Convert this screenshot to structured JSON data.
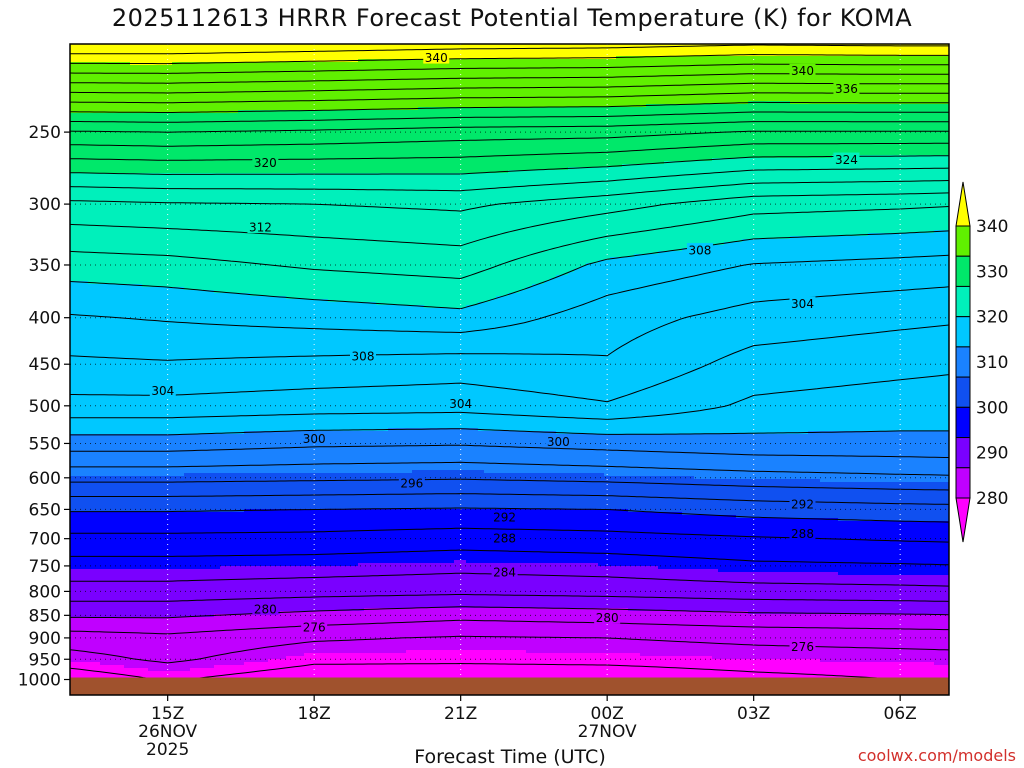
{
  "chart_data": {
    "type": "heatmap",
    "title": "2025112613 HRRR Forecast Potential Temperature (K) for KOMA",
    "xlabel": "Forecast Time (UTC)",
    "x_ticks": [
      {
        "hour": 15,
        "lines": [
          "15Z",
          "26NOV",
          "2025"
        ]
      },
      {
        "hour": 18,
        "lines": [
          "18Z"
        ]
      },
      {
        "hour": 21,
        "lines": [
          "21Z"
        ]
      },
      {
        "hour": 24,
        "lines": [
          "00Z",
          "27NOV"
        ]
      },
      {
        "hour": 27,
        "lines": [
          "03Z"
        ]
      },
      {
        "hour": 30,
        "lines": [
          "06Z"
        ]
      }
    ],
    "xlim": [
      13,
      31
    ],
    "y_scale": "log",
    "ylim": [
      200,
      1040
    ],
    "y_ticks": [
      250,
      300,
      350,
      400,
      450,
      500,
      550,
      600,
      650,
      700,
      750,
      800,
      850,
      900,
      950,
      1000
    ],
    "grid": true,
    "surface_pressure": 1000,
    "colorbar": {
      "ticks": [
        280,
        290,
        300,
        310,
        320,
        330,
        340
      ],
      "colors": [
        "#ff00ff",
        "#c000ff",
        "#7a00ff",
        "#0000ff",
        "#1050f0",
        "#1a82ff",
        "#00c8ff",
        "#00f0bb",
        "#00e86a",
        "#60f000",
        "#ffff00"
      ],
      "bounds": [
        270,
        275,
        280,
        285,
        290,
        295,
        300,
        310,
        320,
        330,
        340,
        350
      ]
    },
    "profile_hours": [
      13,
      15,
      18,
      21,
      24,
      27,
      30,
      31
    ],
    "profiles": [
      {
        "p": [
          1000,
          950,
          900,
          850,
          800,
          750,
          700,
          650,
          600,
          550,
          500,
          450,
          400,
          350,
          300,
          250,
          200
        ],
        "theta": [
          272.5,
          275.2,
          277.0,
          280.3,
          283.2,
          285.2,
          287.5,
          290.2,
          294.6,
          299.0,
          303.4,
          305.6,
          307.8,
          311.0,
          315.5,
          325.8,
          344.0
        ]
      },
      {
        "p": [
          1000,
          950,
          900,
          850,
          800,
          750,
          700,
          650,
          600,
          550,
          500,
          450,
          400,
          350,
          300,
          250,
          200
        ],
        "theta": [
          274.2,
          276.4,
          277.5,
          280.3,
          283.2,
          285.2,
          287.5,
          290.2,
          294.6,
          299.0,
          303.4,
          305.8,
          308.2,
          311.3,
          315.8,
          326.0,
          344.0
        ]
      },
      {
        "p": [
          1000,
          950,
          900,
          850,
          800,
          750,
          700,
          650,
          600,
          550,
          500,
          450,
          400,
          350,
          300,
          250,
          200
        ],
        "theta": [
          272.5,
          274.5,
          276.3,
          279.4,
          282.8,
          285.0,
          287.4,
          290.0,
          294.4,
          298.4,
          303.0,
          305.4,
          308.8,
          312.3,
          316.0,
          325.6,
          343.5
        ]
      },
      {
        "p": [
          1000,
          950,
          900,
          850,
          800,
          750,
          700,
          650,
          600,
          550,
          500,
          450,
          400,
          350,
          300,
          250,
          200
        ],
        "theta": [
          272.5,
          274.4,
          275.8,
          278.6,
          282.5,
          284.6,
          287.0,
          289.8,
          294.2,
          298.2,
          302.8,
          305.0,
          309.4,
          312.9,
          316.4,
          325.0,
          343.0
        ]
      },
      {
        "p": [
          1000,
          950,
          900,
          850,
          800,
          750,
          700,
          650,
          600,
          550,
          500,
          450,
          400,
          350,
          300,
          250,
          200
        ],
        "theta": [
          272.5,
          274.6,
          276.0,
          279.0,
          282.8,
          284.9,
          287.3,
          290.0,
          294.6,
          298.8,
          303.8,
          305.8,
          306.9,
          309.5,
          314.8,
          324.8,
          342.8
        ]
      },
      {
        "p": [
          1000,
          950,
          900,
          850,
          800,
          750,
          700,
          650,
          600,
          550,
          500,
          450,
          400,
          350,
          300,
          250,
          200
        ],
        "theta": [
          273.4,
          275.0,
          276.5,
          279.6,
          283.2,
          285.6,
          287.8,
          290.8,
          295.2,
          299.4,
          301.6,
          303.2,
          305.2,
          307.9,
          312.8,
          323.8,
          342.2
        ]
      },
      {
        "p": [
          1000,
          950,
          900,
          850,
          800,
          750,
          700,
          650,
          600,
          550,
          500,
          450,
          400,
          350,
          300,
          250,
          200
        ],
        "theta": [
          274.0,
          275.2,
          276.8,
          279.8,
          283.4,
          285.8,
          288.2,
          291.2,
          295.6,
          299.5,
          301.0,
          302.6,
          304.5,
          307.4,
          312.4,
          323.8,
          342.4
        ]
      },
      {
        "p": [
          1000,
          950,
          900,
          850,
          800,
          750,
          700,
          650,
          600,
          550,
          500,
          450,
          400,
          350,
          300,
          250,
          200
        ],
        "theta": [
          274.0,
          275.3,
          276.9,
          279.9,
          283.5,
          285.9,
          288.3,
          291.3,
          295.7,
          299.6,
          300.8,
          302.4,
          304.3,
          307.2,
          312.2,
          323.8,
          342.4
        ]
      }
    ],
    "contour_labels": [
      {
        "text": "340",
        "hour": 20.5,
        "p": 207
      },
      {
        "text": "340",
        "hour": 28.0,
        "p": 214
      },
      {
        "text": "336",
        "hour": 28.9,
        "p": 224
      },
      {
        "text": "324",
        "hour": 28.9,
        "p": 268
      },
      {
        "text": "320",
        "hour": 17.0,
        "p": 270
      },
      {
        "text": "312",
        "hour": 16.9,
        "p": 318
      },
      {
        "text": "308",
        "hour": 25.9,
        "p": 337
      },
      {
        "text": "304",
        "hour": 28.0,
        "p": 386
      },
      {
        "text": "308",
        "hour": 19.0,
        "p": 441
      },
      {
        "text": "304",
        "hour": 14.9,
        "p": 481
      },
      {
        "text": "304",
        "hour": 21.0,
        "p": 497
      },
      {
        "text": "300",
        "hour": 18.0,
        "p": 543
      },
      {
        "text": "300",
        "hour": 23.0,
        "p": 547
      },
      {
        "text": "296",
        "hour": 20.0,
        "p": 608
      },
      {
        "text": "292",
        "hour": 21.9,
        "p": 663
      },
      {
        "text": "292",
        "hour": 28.0,
        "p": 641
      },
      {
        "text": "288",
        "hour": 21.9,
        "p": 699
      },
      {
        "text": "288",
        "hour": 28.0,
        "p": 691
      },
      {
        "text": "284",
        "hour": 21.9,
        "p": 762
      },
      {
        "text": "280",
        "hour": 17.0,
        "p": 836
      },
      {
        "text": "280",
        "hour": 24.0,
        "p": 855
      },
      {
        "text": "276",
        "hour": 18.0,
        "p": 876
      },
      {
        "text": "276",
        "hour": 28.0,
        "p": 920
      }
    ]
  },
  "credit": "coolwx.com/models"
}
